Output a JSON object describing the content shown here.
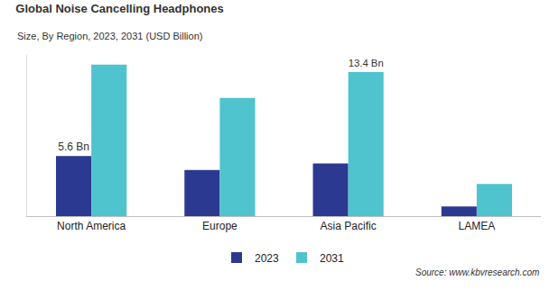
{
  "chart_data": {
    "type": "bar",
    "title": "Global Noise Cancelling Headphones",
    "subtitle": "Size, By Region, 2023, 2031 (USD Billion)",
    "categories": [
      "North America",
      "Europe",
      "Asia Pacific",
      "LAMEA"
    ],
    "series": [
      {
        "name": "2023",
        "color": "#2b3990",
        "values": [
          5.6,
          4.3,
          4.9,
          0.9
        ],
        "value_labels": [
          "5.6 Bn",
          null,
          null,
          null
        ]
      },
      {
        "name": "2031",
        "color": "#4fc3ce",
        "values": [
          14.1,
          11.0,
          13.4,
          3.0
        ],
        "value_labels": [
          null,
          null,
          "13.4 Bn",
          null
        ]
      }
    ],
    "ylim": [
      0,
      15
    ],
    "tick_labels": "x",
    "grid": false,
    "legend": "bottom",
    "data_labels": true,
    "annotations": [
      "Source: www.kbvresearch.com"
    ]
  }
}
